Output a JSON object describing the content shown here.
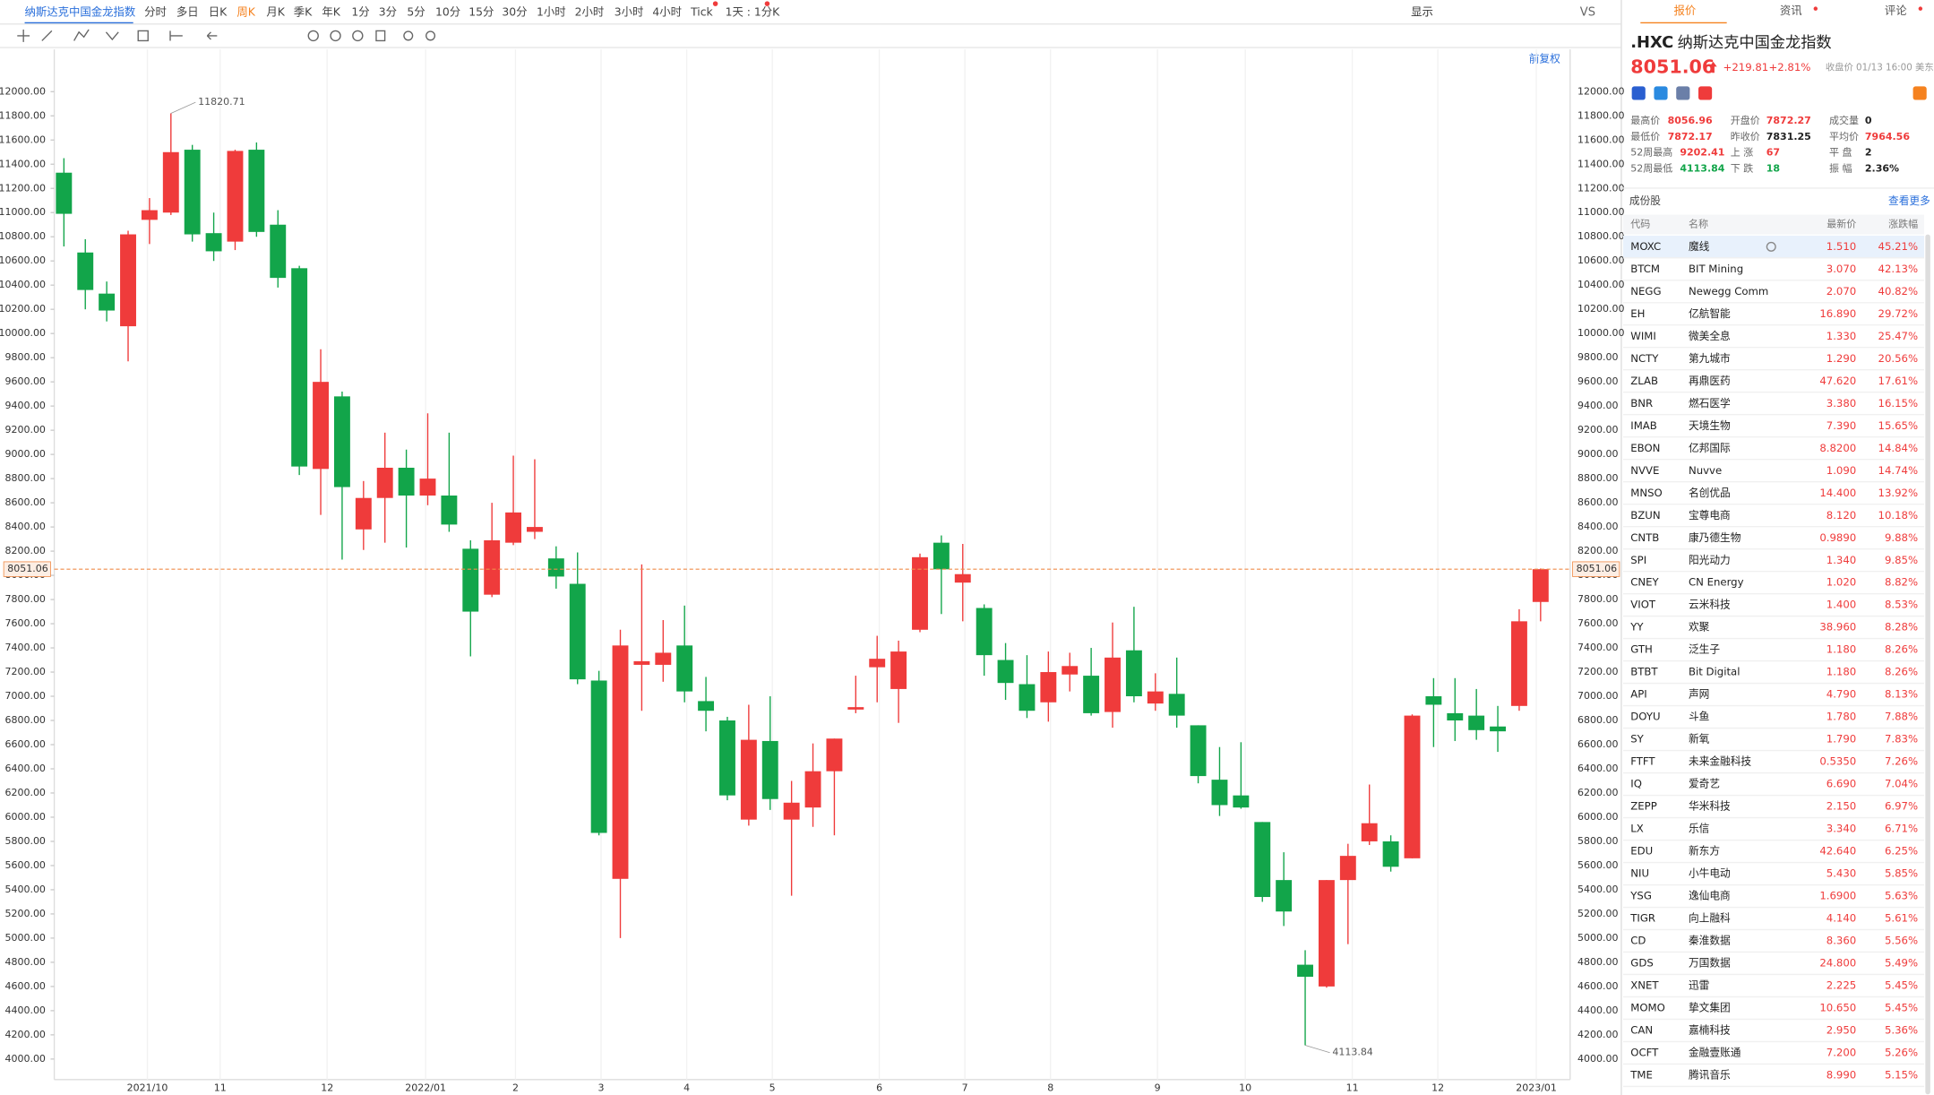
{
  "toolbar": {
    "symbol": "纳斯达克中国金龙指数",
    "periods": [
      "分时",
      "多日",
      "日K",
      "周K",
      "月K",
      "季K",
      "年K",
      "1分",
      "3分",
      "5分",
      "10分",
      "15分",
      "30分",
      "1小时",
      "2小时",
      "3小时",
      "4小时",
      "Tick",
      "1天 : 1分K"
    ],
    "display": "显示",
    "compare": "VS",
    "adjust": "前复权"
  },
  "quote": {
    "tabs": [
      "报价",
      "资讯",
      "评论"
    ],
    "code": ".HXC",
    "name": "纳斯达克中国金龙指数",
    "price": "8051.06",
    "change": "+219.81",
    "change_pct": "+2.81%",
    "status": "收盘价 01/13 16:00 美东",
    "stats": [
      [
        "最高价",
        "8056.96"
      ],
      [
        "开盘价",
        "7872.27"
      ],
      [
        "成交量",
        "0"
      ],
      [
        "最低价",
        "7872.17"
      ],
      [
        "昨收价",
        "7831.25"
      ],
      [
        "平均价",
        "7964.56"
      ],
      [
        "52周最高",
        "9202.41"
      ],
      [
        "上 涨",
        "67"
      ],
      [
        "平 盘",
        "2"
      ],
      [
        "52周最低",
        "4113.84"
      ],
      [
        "下 跌",
        "18"
      ],
      [
        "振 幅",
        "2.36%"
      ]
    ]
  },
  "constituents": {
    "title": "成份股",
    "more": "查看更多",
    "columns": [
      "代码",
      "名称",
      "最新价",
      "涨跌幅"
    ],
    "rows": [
      [
        "MOXC",
        "魔线",
        "1.510",
        "45.21%"
      ],
      [
        "BTCM",
        "BIT Mining",
        "3.070",
        "42.13%"
      ],
      [
        "NEGG",
        "Newegg Comm",
        "2.070",
        "40.82%"
      ],
      [
        "EH",
        "亿航智能",
        "16.890",
        "29.72%"
      ],
      [
        "WIMI",
        "微美全息",
        "1.330",
        "25.47%"
      ],
      [
        "NCTY",
        "第九城市",
        "1.290",
        "20.56%"
      ],
      [
        "ZLAB",
        "再鼎医药",
        "47.620",
        "17.61%"
      ],
      [
        "BNR",
        "燃石医学",
        "3.380",
        "16.15%"
      ],
      [
        "IMAB",
        "天境生物",
        "7.390",
        "15.65%"
      ],
      [
        "EBON",
        "亿邦国际",
        "8.8200",
        "14.84%"
      ],
      [
        "NVVE",
        "Nuvve",
        "1.090",
        "14.74%"
      ],
      [
        "MNSO",
        "名创优品",
        "14.400",
        "13.92%"
      ],
      [
        "BZUN",
        "宝尊电商",
        "8.120",
        "10.18%"
      ],
      [
        "CNTB",
        "康乃德生物",
        "0.9890",
        "9.88%"
      ],
      [
        "SPI",
        "阳光动力",
        "1.340",
        "9.85%"
      ],
      [
        "CNEY",
        "CN Energy",
        "1.020",
        "8.82%"
      ],
      [
        "VIOT",
        "云米科技",
        "1.400",
        "8.53%"
      ],
      [
        "YY",
        "欢聚",
        "38.960",
        "8.28%"
      ],
      [
        "GTH",
        "泛生子",
        "1.180",
        "8.26%"
      ],
      [
        "BTBT",
        "Bit Digital",
        "1.180",
        "8.26%"
      ],
      [
        "API",
        "声网",
        "4.790",
        "8.13%"
      ],
      [
        "DOYU",
        "斗鱼",
        "1.780",
        "7.88%"
      ],
      [
        "SY",
        "新氧",
        "1.790",
        "7.83%"
      ],
      [
        "FTFT",
        "未来金融科技",
        "0.5350",
        "7.26%"
      ],
      [
        "IQ",
        "爱奇艺",
        "6.690",
        "7.04%"
      ],
      [
        "ZEPP",
        "华米科技",
        "2.150",
        "6.97%"
      ],
      [
        "LX",
        "乐信",
        "3.340",
        "6.71%"
      ],
      [
        "EDU",
        "新东方",
        "42.640",
        "6.25%"
      ],
      [
        "NIU",
        "小牛电动",
        "5.430",
        "5.85%"
      ],
      [
        "YSG",
        "逸仙电商",
        "1.6900",
        "5.63%"
      ],
      [
        "TIGR",
        "向上融科",
        "4.140",
        "5.61%"
      ],
      [
        "CD",
        "秦淮数据",
        "8.360",
        "5.56%"
      ],
      [
        "GDS",
        "万国数据",
        "24.800",
        "5.49%"
      ],
      [
        "XNET",
        "迅雷",
        "2.225",
        "5.45%"
      ],
      [
        "MOMO",
        "挚文集团",
        "10.650",
        "5.45%"
      ],
      [
        "CAN",
        "嘉楠科技",
        "2.950",
        "5.36%"
      ],
      [
        "OCFT",
        "金融壹账通",
        "7.200",
        "5.26%"
      ],
      [
        "TME",
        "腾讯音乐",
        "8.990",
        "5.15%"
      ]
    ]
  },
  "chart_data": {
    "type": "candlestick",
    "up_color": "#ef3b3b",
    "down_color": "#12a54a",
    "grid": true,
    "categories": [
      null,
      null,
      null,
      null,
      null,
      null,
      null,
      null,
      null,
      null,
      null,
      null,
      null,
      null,
      null,
      null,
      null,
      null,
      null,
      null,
      null,
      null,
      null,
      null,
      null,
      null,
      null,
      null,
      null,
      null,
      null,
      null,
      null,
      null,
      null,
      null,
      null,
      null,
      null,
      null,
      null,
      null,
      null,
      null,
      null,
      null,
      null,
      null,
      null,
      null,
      null,
      null,
      null,
      null,
      null,
      null,
      null,
      null,
      null,
      null,
      null,
      null,
      null,
      null,
      null,
      null,
      null,
      null,
      null,
      null
    ],
    "open": [
      11330,
      10670,
      10330,
      10060,
      10940,
      11000,
      11520,
      10830,
      10760,
      11520,
      10900,
      10540,
      8880,
      9480,
      8380,
      8640,
      8890,
      8660,
      8660,
      8220,
      7840,
      8270,
      8360,
      8140,
      7930,
      7130,
      5490,
      7260,
      7260,
      7420,
      6960,
      6800,
      5980,
      6630,
      5980,
      6080,
      6380,
      6890,
      7240,
      7060,
      7550,
      8270,
      7940,
      7730,
      7300,
      7100,
      6950,
      7180,
      7170,
      6870,
      7380,
      6940,
      7020,
      6760,
      6310,
      6180,
      5960,
      5480,
      4780,
      4600,
      5480,
      5800,
      5800,
      5660,
      7000,
      6860,
      6840,
      6750,
      6920,
      7780
    ],
    "high": [
      11450,
      10780,
      10430,
      10850,
      11120,
      11820.71,
      11560,
      11000,
      11520,
      11580,
      11020,
      10560,
      9870,
      9520,
      8780,
      9180,
      9040,
      9340,
      9180,
      8290,
      8600,
      8990,
      8960,
      8240,
      8190,
      7210,
      7550,
      8090,
      7630,
      7750,
      7160,
      6830,
      6930,
      7000,
      6300,
      6610,
      6650,
      7170,
      7500,
      7460,
      8180,
      8330,
      8260,
      7760,
      7440,
      7340,
      7370,
      7360,
      7400,
      7610,
      7740,
      7190,
      7320,
      6760,
      6580,
      6620,
      5960,
      5710,
      4900,
      5480,
      5780,
      6270,
      5850,
      6850,
      7150,
      7150,
      7060,
      6920,
      7720,
      8056.96
    ],
    "low": [
      10720,
      10200,
      10100,
      9770,
      10740,
      10980,
      10760,
      10600,
      10690,
      10800,
      10380,
      8830,
      8500,
      8130,
      8210,
      8270,
      8230,
      8580,
      8360,
      7330,
      7820,
      8250,
      8300,
      7890,
      7100,
      5850,
      5000,
      6880,
      7120,
      6950,
      6710,
      6140,
      5930,
      6060,
      5350,
      5920,
      5850,
      6860,
      6950,
      6780,
      7530,
      7680,
      7620,
      7170,
      6970,
      6820,
      6790,
      7040,
      6840,
      6740,
      6950,
      6880,
      6740,
      6280,
      6010,
      6070,
      5300,
      5100,
      4113.84,
      4590,
      4950,
      5770,
      5550,
      5660,
      6580,
      6630,
      6640,
      6540,
      6880,
      7620
    ],
    "close": [
      10990,
      10360,
      10190,
      10820,
      11020,
      11500,
      10820,
      10680,
      11510,
      10840,
      10460,
      8900,
      9600,
      8730,
      8640,
      8890,
      8660,
      8800,
      8420,
      7700,
      8290,
      8520,
      8400,
      7990,
      7140,
      5870,
      7420,
      7290,
      7360,
      7040,
      6880,
      6180,
      6640,
      6150,
      6120,
      6380,
      6650,
      6910,
      7310,
      7370,
      8150,
      8050,
      8010,
      7340,
      7110,
      6880,
      7200,
      7250,
      6860,
      7320,
      7000,
      7040,
      6840,
      6340,
      6100,
      6080,
      5340,
      5220,
      4680,
      5480,
      5680,
      5950,
      5590,
      6840,
      6930,
      6800,
      6720,
      6710,
      7620,
      8051.06
    ],
    "xlim": [
      -0.45,
      70.38
    ],
    "ylim": [
      3830,
      12350
    ],
    "xticks": [
      {
        "value": 3.9,
        "label": "2021/10"
      },
      {
        "value": 7.3,
        "label": "11"
      },
      {
        "value": 12.3,
        "label": "12"
      },
      {
        "value": 16.9,
        "label": "2022/01"
      },
      {
        "value": 21.1,
        "label": "2"
      },
      {
        "value": 25.1,
        "label": "3"
      },
      {
        "value": 29.1,
        "label": "4"
      },
      {
        "value": 33.1,
        "label": "5"
      },
      {
        "value": 38.1,
        "label": "6"
      },
      {
        "value": 42.1,
        "label": "7"
      },
      {
        "value": 46.1,
        "label": "8"
      },
      {
        "value": 51.1,
        "label": "9"
      },
      {
        "value": 55.2,
        "label": "10"
      },
      {
        "value": 60.2,
        "label": "11"
      },
      {
        "value": 64.2,
        "label": "12"
      },
      {
        "value": 68.8,
        "label": "2023/01"
      }
    ],
    "yticks": [
      {
        "value": 4000,
        "label": "4000.00"
      },
      {
        "value": 4200,
        "label": "4200.00"
      },
      {
        "value": 4400,
        "label": "4400.00"
      },
      {
        "value": 4600,
        "label": "4600.00"
      },
      {
        "value": 4800,
        "label": "4800.00"
      },
      {
        "value": 5000,
        "label": "5000.00"
      },
      {
        "value": 5200,
        "label": "5200.00"
      },
      {
        "value": 5400,
        "label": "5400.00"
      },
      {
        "value": 5600,
        "label": "5600.00"
      },
      {
        "value": 5800,
        "label": "5800.00"
      },
      {
        "value": 6000,
        "label": "6000.00"
      },
      {
        "value": 6200,
        "label": "6200.00"
      },
      {
        "value": 6400,
        "label": "6400.00"
      },
      {
        "value": 6600,
        "label": "6600.00"
      },
      {
        "value": 6800,
        "label": "6800.00"
      },
      {
        "value": 7000,
        "label": "7000.00"
      },
      {
        "value": 7200,
        "label": "7200.00"
      },
      {
        "value": 7400,
        "label": "7400.00"
      },
      {
        "value": 7600,
        "label": "7600.00"
      },
      {
        "value": 7800,
        "label": "7800.00"
      },
      {
        "value": 8000,
        "label": "8000.00"
      },
      {
        "value": 8200,
        "label": "8200.00"
      },
      {
        "value": 8400,
        "label": "8400.00"
      },
      {
        "value": 8600,
        "label": "8600.00"
      },
      {
        "value": 8800,
        "label": "8800.00"
      },
      {
        "value": 9000,
        "label": "9000.00"
      },
      {
        "value": 9200,
        "label": "9200.00"
      },
      {
        "value": 9400,
        "label": "9400.00"
      },
      {
        "value": 9600,
        "label": "9600.00"
      },
      {
        "value": 9800,
        "label": "9800.00"
      },
      {
        "value": 10000,
        "label": "10000.00"
      },
      {
        "value": 10200,
        "label": "10200.00"
      },
      {
        "value": 10400,
        "label": "10400.00"
      },
      {
        "value": 10600,
        "label": "10600.00"
      },
      {
        "value": 10800,
        "label": "10800.00"
      },
      {
        "value": 11000,
        "label": "11000.00"
      },
      {
        "value": 11200,
        "label": "11200.00"
      },
      {
        "value": 11400,
        "label": "11400.00"
      },
      {
        "value": 11600,
        "label": "11600.00"
      },
      {
        "value": 11800,
        "label": "11800.00"
      },
      {
        "value": 12000,
        "label": "12000.00"
      }
    ],
    "last_price": 8051.06,
    "annotations": [
      11820.71,
      4113.84
    ]
  }
}
